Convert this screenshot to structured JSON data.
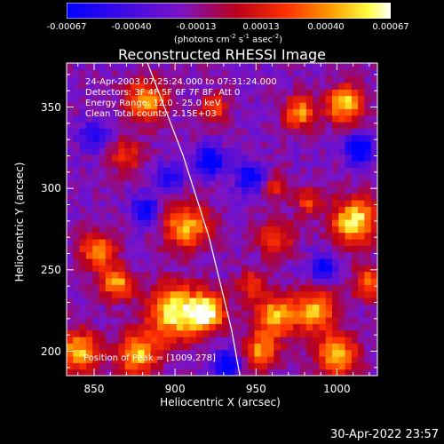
{
  "colorbar": {
    "tick_labels": [
      "-0.00067",
      "-0.00040",
      "-0.00013",
      "0.00013",
      "0.00040",
      "0.00067"
    ],
    "units_main": "(photons cm",
    "units_exp1": "-2",
    "units_mid": " s",
    "units_exp2": "-1",
    "units_asec": " asec",
    "units_exp3": "-2",
    "units_close": ")",
    "range": [
      -0.00067,
      0.00067
    ]
  },
  "header": {
    "title": "Reconstructed RHESSI Image"
  },
  "info": {
    "line1": "24-Apr-2003 07:25:24.000 to 07:31:24.000",
    "line2": "Detectors: 3F 4F 5F 6F 7F 8F, Att 0",
    "line3": "Energy Range: 12.0 - 25.0 keV",
    "line4": "Clean     Total counts: 2.15E+03",
    "peak": "Position of Peak = [1009,278]"
  },
  "footer": {
    "timestamp": "30-Apr-2022 23:57"
  },
  "chart_data": {
    "type": "heatmap",
    "title": "Reconstructed RHESSI Image",
    "xlabel": "Heliocentric X (arcsec)",
    "ylabel": "Heliocentric Y (arcsec)",
    "xlim": [
      833,
      1025
    ],
    "ylim": [
      185,
      377
    ],
    "x_ticks": [
      850,
      900,
      950,
      1000
    ],
    "y_ticks": [
      200,
      250,
      300,
      350
    ],
    "colormap": "blue-purple-red-yellow-white",
    "peak_position": [
      1009,
      278
    ],
    "limb_curve": [
      [
        883,
        377
      ],
      [
        905,
        320
      ],
      [
        921,
        270
      ],
      [
        935,
        213
      ],
      [
        940,
        185
      ]
    ],
    "blobs": [
      [
        1009,
        278,
        10,
        1.0
      ],
      [
        1003,
        350,
        8,
        0.9
      ],
      [
        975,
        345,
        7,
        0.75
      ],
      [
        880,
        352,
        9,
        0.8
      ],
      [
        922,
        348,
        6,
        0.6
      ],
      [
        905,
        275,
        10,
        0.8
      ],
      [
        960,
        268,
        8,
        0.55
      ],
      [
        850,
        260,
        8,
        0.7
      ],
      [
        862,
        240,
        7,
        0.8
      ],
      [
        898,
        222,
        12,
        1.0
      ],
      [
        918,
        222,
        8,
        0.95
      ],
      [
        838,
        198,
        9,
        0.85
      ],
      [
        875,
        196,
        9,
        0.85
      ],
      [
        960,
        220,
        9,
        0.85
      ],
      [
        950,
        198,
        8,
        0.7
      ],
      [
        985,
        223,
        9,
        0.8
      ],
      [
        998,
        196,
        9,
        0.85
      ],
      [
        1018,
        240,
        7,
        0.7
      ],
      [
        980,
        290,
        6,
        0.5
      ],
      [
        945,
        305,
        6,
        -0.7
      ],
      [
        920,
        315,
        6,
        -0.8
      ],
      [
        1012,
        322,
        6,
        -0.8
      ],
      [
        960,
        300,
        6,
        0.45
      ],
      [
        868,
        318,
        7,
        0.5
      ],
      [
        895,
        305,
        6,
        -0.5
      ],
      [
        848,
        330,
        6,
        -0.5
      ],
      [
        930,
        190,
        6,
        -0.8
      ],
      [
        990,
        250,
        6,
        -0.6
      ],
      [
        880,
        285,
        6,
        -0.6
      ],
      [
        945,
        240,
        6,
        0.55
      ]
    ]
  }
}
